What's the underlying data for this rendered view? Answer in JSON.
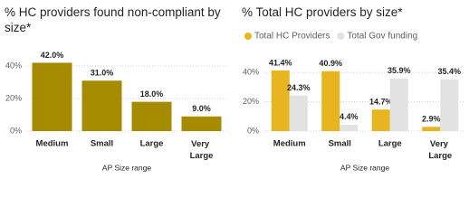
{
  "chart_data": [
    {
      "type": "bar",
      "title": "% HC providers found non-compliant by size*",
      "x_label": "AP Size range",
      "categories": [
        "Medium",
        "Small",
        "Large",
        "Very Large"
      ],
      "series": [
        {
          "name": null,
          "color": "#a68a00",
          "values": [
            42.0,
            31.0,
            18.0,
            9.0
          ],
          "value_labels": [
            "42.0%",
            "31.0%",
            "18.0%",
            "9.0%"
          ]
        }
      ],
      "ylim": [
        0,
        50
      ],
      "yticks": [
        {
          "value": 0,
          "label": "0%"
        },
        {
          "value": 20,
          "label": "20%"
        },
        {
          "value": 40,
          "label": "40%"
        }
      ],
      "grid": true,
      "legend": false
    },
    {
      "type": "bar",
      "title": "% Total HC providers by size*",
      "x_label": "AP Size range",
      "categories": [
        "Medium",
        "Small",
        "Large",
        "Very Large"
      ],
      "series": [
        {
          "name": "Total HC Providers",
          "color": "#e6b520",
          "values": [
            41.4,
            40.9,
            14.7,
            2.9
          ],
          "value_labels": [
            "41.4%",
            "40.9%",
            "14.7%",
            "2.9%"
          ]
        },
        {
          "name": "Total Gov funding",
          "color": "#e2e2e2",
          "values": [
            24.3,
            4.4,
            35.9,
            35.4
          ],
          "value_labels": [
            "24.3%",
            "4.4%",
            "35.9%",
            "35.4%"
          ]
        }
      ],
      "ylim": [
        0,
        50
      ],
      "yticks": [
        {
          "value": 0,
          "label": "0%"
        },
        {
          "value": 20,
          "label": "20%"
        },
        {
          "value": 40,
          "label": "40%"
        }
      ],
      "grid": true,
      "legend": "top-left"
    }
  ]
}
